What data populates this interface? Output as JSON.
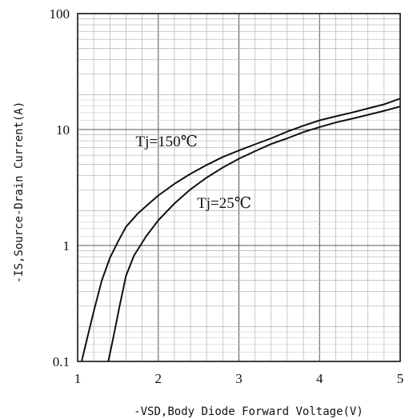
{
  "chart_data": {
    "type": "line",
    "xlabel": "-VSD,Body Diode Forward Voltage(V)",
    "ylabel": "-IS,Source-Drain Current(A)",
    "xlim": [
      1,
      5
    ],
    "ylim": [
      0.1,
      100
    ],
    "yscale": "log",
    "grid": true,
    "colors": {
      "line": "#111111",
      "grid": "#b0b0b0",
      "background": "#ffffff"
    },
    "x_ticks": [
      "1",
      "2",
      "3",
      "4",
      "5"
    ],
    "y_ticks": [
      "0.1",
      "1",
      "10",
      "100"
    ],
    "x_tick_values": [
      1,
      2,
      3,
      4,
      5
    ],
    "y_tick_values": [
      0.1,
      1,
      10,
      100
    ],
    "series": [
      {
        "name": "Tj=150℃",
        "x": [
          1.05,
          1.12,
          1.2,
          1.3,
          1.4,
          1.5,
          1.6,
          1.75,
          1.9,
          2.0,
          2.2,
          2.4,
          2.6,
          2.8,
          3.0,
          3.2,
          3.4,
          3.6,
          3.8,
          4.0,
          4.2,
          4.4,
          4.6,
          4.8,
          5.0
        ],
        "y": [
          0.1,
          0.16,
          0.27,
          0.5,
          0.78,
          1.08,
          1.45,
          1.9,
          2.35,
          2.7,
          3.4,
          4.15,
          4.95,
          5.8,
          6.6,
          7.45,
          8.4,
          9.6,
          10.8,
          12.0,
          13.0,
          14.0,
          15.2,
          16.5,
          18.5
        ]
      },
      {
        "name": "Tj=25℃",
        "x": [
          1.38,
          1.45,
          1.52,
          1.6,
          1.7,
          1.85,
          2.0,
          2.2,
          2.4,
          2.6,
          2.8,
          3.0,
          3.2,
          3.4,
          3.6,
          3.8,
          4.0,
          4.2,
          4.4,
          4.6,
          4.8,
          5.0
        ],
        "y": [
          0.1,
          0.17,
          0.3,
          0.55,
          0.82,
          1.2,
          1.65,
          2.3,
          3.05,
          3.85,
          4.7,
          5.6,
          6.5,
          7.5,
          8.4,
          9.5,
          10.5,
          11.5,
          12.4,
          13.4,
          14.5,
          15.8
        ]
      }
    ],
    "annotations": [
      {
        "text": "Tj=150℃",
        "x": 1.72,
        "y": 8.0
      },
      {
        "text": "Tj=25℃",
        "x": 2.48,
        "y": 2.35
      }
    ]
  }
}
